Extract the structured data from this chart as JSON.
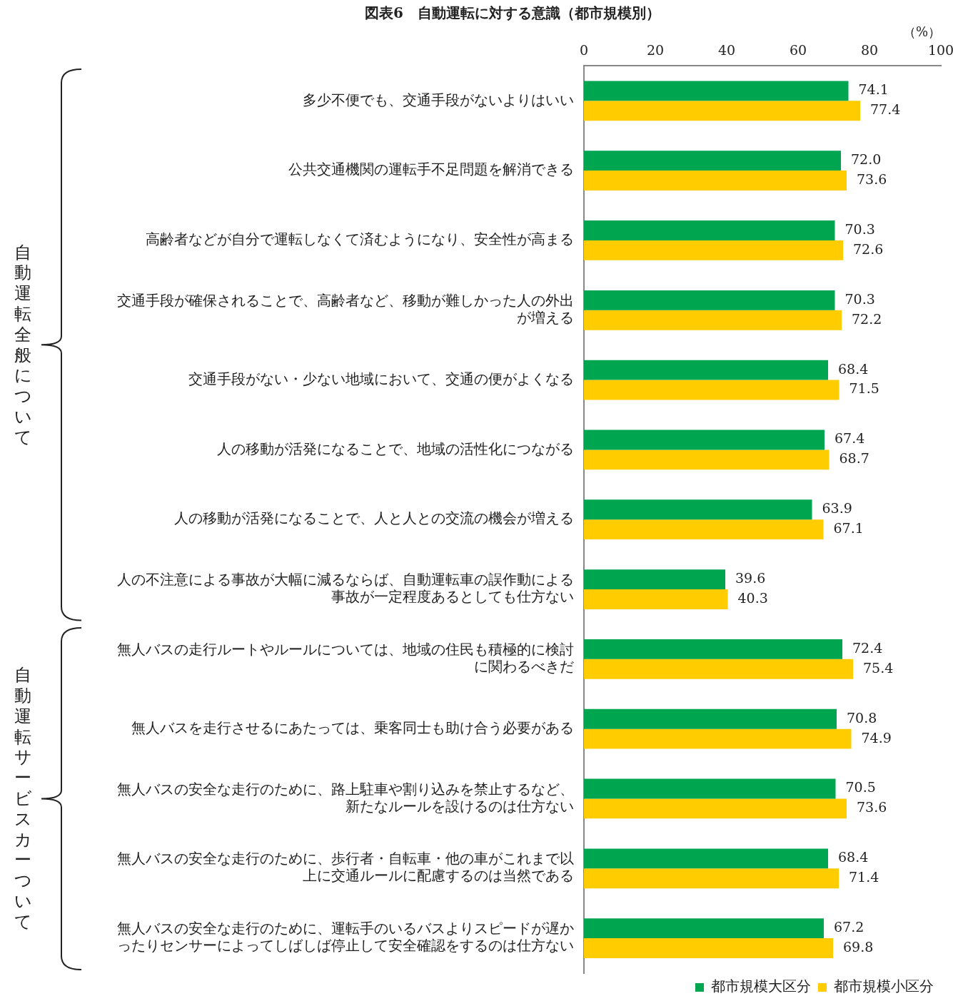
{
  "chart_data": {
    "type": "bar",
    "orientation": "horizontal",
    "title": "図表6　自動運転に対する意識（都市規模別）",
    "xlabel": "（%）",
    "categories": [
      "多少不便でも、交通手段がないよりはいい",
      "公共交通機関の運転手不足問題を解消できる",
      "高齢者などが自分で運転しなくて済むようになり、安全性が高まる",
      "交通手段が確保されることで、高齢者など、移動が難しかった人の外出が増える",
      "交通手段がない・少ない地域において、交通の便がよくなる",
      "人の移動が活発になることで、地域の活性化につながる",
      "人の移動が活発になることで、人と人との交流の機会が増える",
      "人の不注意による事故が大幅に減るならば、自動運転車の誤作動による事故が一定程度あるとしても仕方ない",
      "無人バスの走行ルートやルールについては、地域の住民も積極的に検討に関わるべきだ",
      "無人バスを走行させるにあたっては、乗客同士も助け合う必要がある",
      "無人バスの安全な走行のために、路上駐車や割り込みを禁止するなど、新たなルールを設けるのは仕方ない",
      "無人バスの安全な走行のために、歩行者・自転車・他の車がこれまで以上に交通ルールに配慮するのは当然である",
      "無人バスの安全な走行のために、運転手のいるバスよりスピードが遅かったりセンサーによってしばしば停止して安全確認をするのは仕方ない"
    ],
    "series": [
      {
        "name": "都市規模大区分",
        "color": "#00a550",
        "values": [
          74.1,
          72.0,
          70.3,
          70.3,
          68.4,
          67.4,
          63.9,
          39.6,
          72.4,
          70.8,
          70.5,
          68.4,
          67.2
        ],
        "value_labels": [
          "74.1",
          "72.0",
          "70.3",
          "70.3",
          "68.4",
          "67.4",
          "63.9",
          "39.6",
          "72.4",
          "70.8",
          "70.5",
          "68.4",
          "67.2"
        ]
      },
      {
        "name": "都市規模小区分",
        "color": "#ffcc00",
        "values": [
          77.4,
          73.6,
          72.6,
          72.2,
          71.5,
          68.7,
          67.1,
          40.3,
          75.4,
          74.9,
          73.6,
          71.4,
          69.8
        ],
        "value_labels": [
          "77.4",
          "73.6",
          "72.6",
          "72.2",
          "71.5",
          "68.7",
          "67.1",
          "40.3",
          "75.4",
          "74.9",
          "73.6",
          "71.4",
          "69.8"
        ]
      }
    ],
    "xlim": [
      0,
      100
    ],
    "xticks": [
      0,
      20,
      40,
      60,
      80,
      100
    ],
    "grid": false,
    "legend": "bottom right",
    "annotations": [
      "自動運転全般について",
      "自動運転サービスカーついて"
    ]
  }
}
